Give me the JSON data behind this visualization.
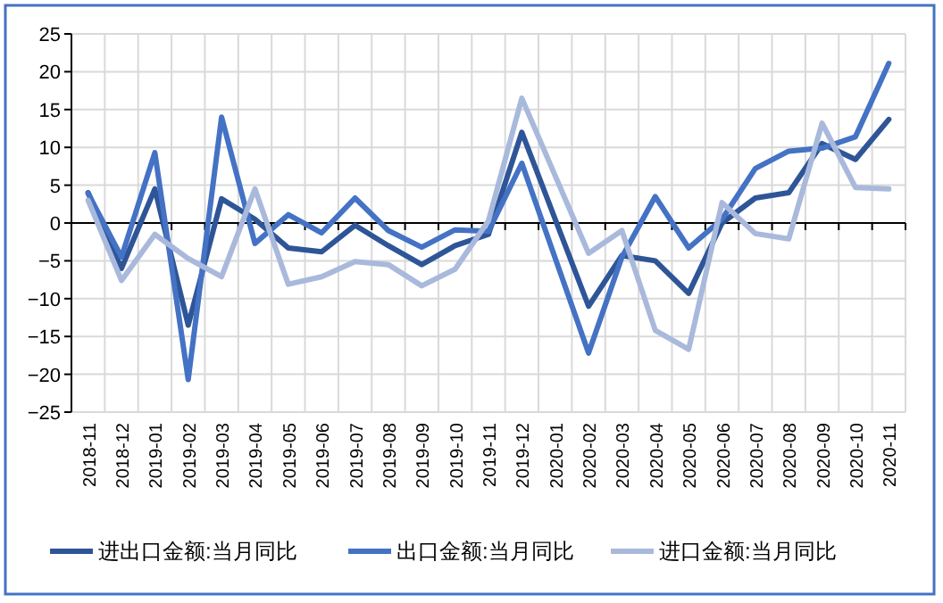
{
  "chart_data": {
    "type": "line",
    "categories": [
      "2018-11",
      "2018-12",
      "2019-01",
      "2019-02",
      "2019-03",
      "2019-04",
      "2019-05",
      "2019-06",
      "2019-07",
      "2019-08",
      "2019-09",
      "2019-10",
      "2019-11",
      "2019-12",
      "2020-01",
      "2020-02",
      "2020-03",
      "2020-04",
      "2020-05",
      "2020-06",
      "2020-07",
      "2020-08",
      "2020-09",
      "2020-10",
      "2020-11"
    ],
    "series": [
      {
        "name": "进出口金额:当月同比",
        "color": "#2e5597",
        "values": [
          4,
          -6,
          4.5,
          -13.5,
          3.2,
          0.5,
          -3.3,
          -3.8,
          -0.3,
          -3,
          -5.5,
          -3,
          -1.5,
          12,
          null,
          -11,
          -4.3,
          -5,
          -9.3,
          0,
          3.3,
          4,
          10.5,
          8.4,
          13.7
        ]
      },
      {
        "name": "出口金额:当月同比",
        "color": "#4472c4",
        "values": [
          3.9,
          -4.5,
          9.3,
          -20.7,
          14,
          -2.7,
          1.1,
          -1.3,
          3.3,
          -1,
          -3.2,
          -0.9,
          -1.1,
          7.9,
          null,
          -17.2,
          -4.5,
          3.5,
          -3.3,
          0.5,
          7.2,
          9.5,
          9.9,
          11.4,
          21.1
        ]
      },
      {
        "name": "进口金额:当月同比",
        "color": "#a9b9dc",
        "values": [
          3,
          -7.6,
          -1.5,
          -4.7,
          -7.1,
          4.5,
          -8.1,
          -7.1,
          -5.1,
          -5.5,
          -8.3,
          -6.1,
          0.3,
          16.5,
          null,
          -4,
          -1,
          -14.2,
          -16.7,
          2.7,
          -1.4,
          -2.1,
          13.2,
          4.7,
          4.5
        ]
      }
    ],
    "ylim": [
      -25,
      25
    ],
    "yticks": [
      -25,
      -20,
      -15,
      -10,
      -5,
      0,
      5,
      10,
      15,
      20,
      25
    ],
    "grid": true,
    "legend": "bottom",
    "marker": "none",
    "line_style": "solid"
  }
}
